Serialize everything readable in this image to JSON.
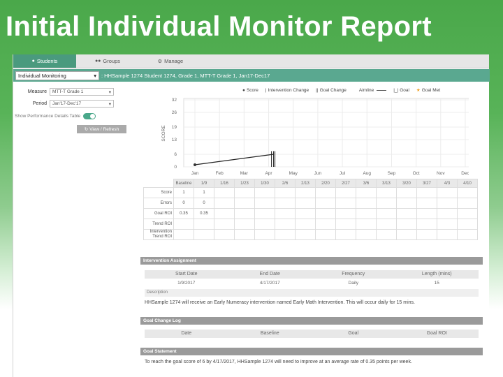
{
  "slide": {
    "title": "Initial Individual Monitor Report"
  },
  "tabs": [
    {
      "label": "Students",
      "icon": "user-icon"
    },
    {
      "label": "Groups",
      "icon": "group-icon"
    },
    {
      "label": "Manage",
      "icon": "gear-icon"
    }
  ],
  "selector": {
    "value": "Individual Monitoring",
    "text": ": HHSample 1274 Student 1274, Grade 1, MTT-T Grade 1, Jan17-Dec17"
  },
  "filters": {
    "measure_label": "Measure",
    "measure_value": "MTT-T Grade 1",
    "period_label": "Period",
    "period_value": "Jan'17-Dec'17",
    "toggle_label": "Show Performance Details Table",
    "view_button": "View / Refresh"
  },
  "legend": {
    "score": "Score",
    "intervention_change": "Intervention Change",
    "goal_change": "Goal Change",
    "aimline": "Aimline",
    "goal": "Goal",
    "goal_met": "Goal Met"
  },
  "colors": {
    "tab_active": "#4a9a7e",
    "selector_bar": "#5aa890",
    "goal_met_star": "#f0a020",
    "section_bar": "#9a9a9a"
  },
  "chart_data": {
    "type": "line",
    "ylabel": "SCORE",
    "yticks": [
      0,
      6,
      13,
      19,
      26,
      32
    ],
    "ylim": [
      0,
      32
    ],
    "categories": [
      "Jan",
      "Feb",
      "Mar",
      "Apr",
      "May",
      "Jun",
      "Jul",
      "Aug",
      "Sep",
      "Oct",
      "Nov",
      "Dec"
    ],
    "series": [
      {
        "name": "Score",
        "points": [
          {
            "x": 0,
            "y": 1
          }
        ]
      },
      {
        "name": "Aimline",
        "points": [
          {
            "x": 0,
            "y": 1
          },
          {
            "x": 3.2,
            "y": 6
          }
        ]
      }
    ],
    "intervention_change_at": 3.2,
    "goal_change_at": 3.2,
    "grid": true
  },
  "perf_table": {
    "columns": [
      "Baseline",
      "1/9",
      "1/16",
      "1/23",
      "1/30",
      "2/6",
      "2/13",
      "2/20",
      "2/27",
      "3/6",
      "3/13",
      "3/20",
      "3/27",
      "4/3",
      "4/10"
    ],
    "rows": [
      {
        "label": "Score",
        "values": [
          "1",
          "1"
        ]
      },
      {
        "label": "Errors",
        "values": [
          "0",
          "0"
        ]
      },
      {
        "label": "Goal ROI",
        "values": [
          "0.35",
          "0.35"
        ]
      },
      {
        "label": "Trend ROI",
        "values": []
      },
      {
        "label": "Intervention Trend ROI",
        "values": []
      }
    ]
  },
  "intervention": {
    "title": "Intervention Assignment",
    "headers": [
      "Start Date",
      "End Date",
      "Frequency",
      "Length (mins)"
    ],
    "values": [
      "1/9/2017",
      "4/17/2017",
      "Daily",
      "15"
    ],
    "desc_label": "Description",
    "description": "HHSample 1274 will receive an Early Numeracy intervention named Early Math Intervention. This will occur daily for 15 mins."
  },
  "goal_log": {
    "title": "Goal Change Log",
    "headers": [
      "Date",
      "Baseline",
      "Goal",
      "Goal ROI"
    ]
  },
  "goal_statement": {
    "title": "Goal Statement",
    "text": "To reach the goal score of 6 by 4/17/2017, HHSample 1274 will need to improve at an average rate of 0.35 points per week."
  }
}
